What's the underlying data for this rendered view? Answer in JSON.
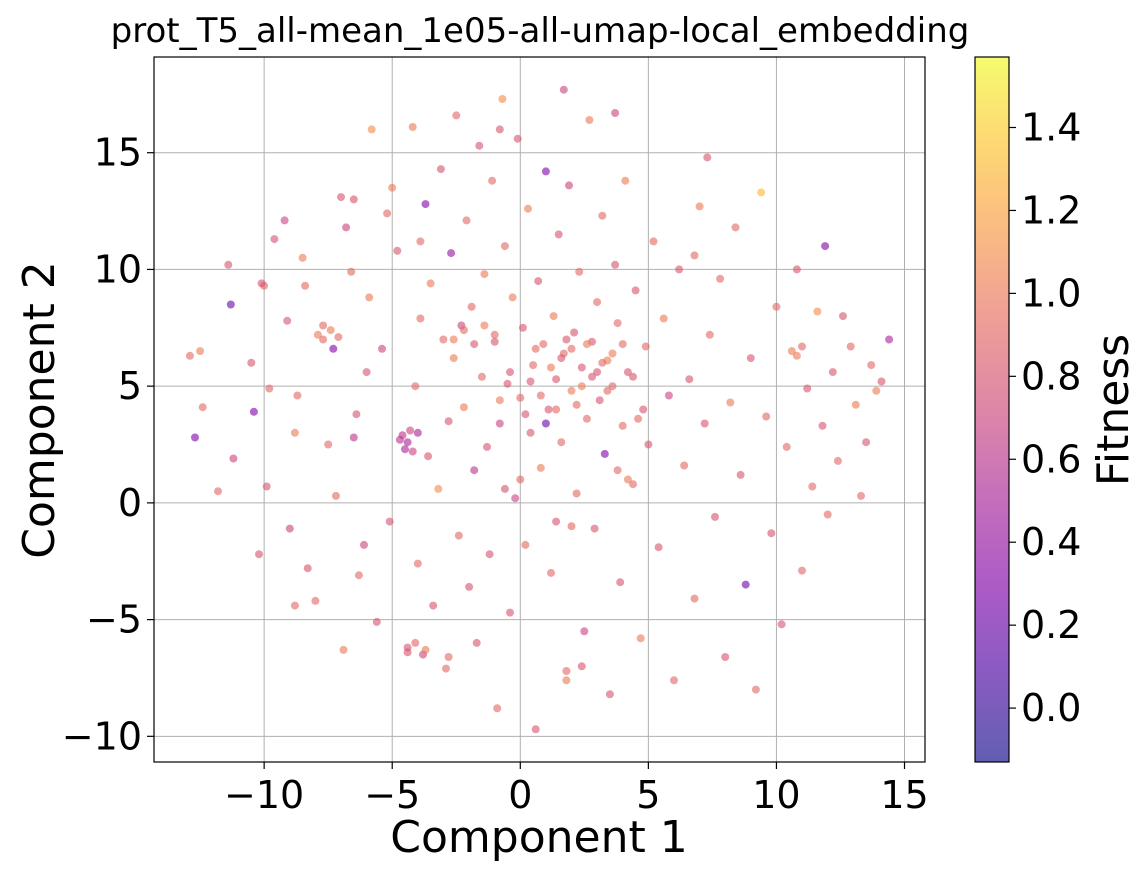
{
  "chart_data": {
    "type": "scatter",
    "title": "prot_T5_all-mean_1e05-all-umap-local_embedding",
    "xlabel": "Component 1",
    "ylabel": "Component 2",
    "xlim": [
      -14.3,
      15.8
    ],
    "ylim": [
      -11.1,
      19.1
    ],
    "xticks": [
      -10,
      -5,
      0,
      5,
      10,
      15
    ],
    "yticks": [
      -10,
      -5,
      0,
      5,
      10,
      15
    ],
    "xtick_labels": [
      "−10",
      "−5",
      "0",
      "5",
      "10",
      "15"
    ],
    "ytick_labels": [
      "−10",
      "−5",
      "0",
      "5",
      "10",
      "15"
    ],
    "grid": true,
    "colormap": "plasma",
    "point_alpha": 0.6,
    "colorbar": {
      "label": "Fitness",
      "range": [
        -0.13,
        1.57
      ],
      "ticks": [
        0.0,
        0.2,
        0.4,
        0.6,
        0.8,
        1.0,
        1.2,
        1.4
      ],
      "tick_labels": [
        "0.0",
        "0.2",
        "0.4",
        "0.6",
        "0.8",
        "1.0",
        "1.2",
        "1.4"
      ]
    },
    "points": [
      [
        -12.7,
        2.8,
        0.3
      ],
      [
        -12.5,
        6.5,
        1.0
      ],
      [
        -12.4,
        4.1,
        0.9
      ],
      [
        -11.8,
        0.5,
        0.9
      ],
      [
        -11.4,
        10.2,
        0.8
      ],
      [
        -11.3,
        8.5,
        0.2
      ],
      [
        -11.2,
        1.9,
        0.7
      ],
      [
        -10.5,
        6.0,
        0.8
      ],
      [
        -10.4,
        3.9,
        0.3
      ],
      [
        -10.2,
        -2.2,
        0.8
      ],
      [
        -10.0,
        9.3,
        0.9
      ],
      [
        -9.9,
        0.7,
        0.8
      ],
      [
        -9.8,
        4.9,
        0.9
      ],
      [
        -9.6,
        11.3,
        0.8
      ],
      [
        -9.2,
        12.1,
        0.7
      ],
      [
        -9.1,
        7.8,
        0.8
      ],
      [
        -9.0,
        -1.1,
        0.7
      ],
      [
        -8.8,
        3.0,
        1.0
      ],
      [
        -8.7,
        4.6,
        0.9
      ],
      [
        -8.5,
        10.5,
        1.0
      ],
      [
        -8.4,
        9.3,
        0.9
      ],
      [
        -8.3,
        -2.8,
        0.8
      ],
      [
        -8.0,
        -4.2,
        0.9
      ],
      [
        -7.9,
        7.2,
        1.0
      ],
      [
        -7.7,
        7.6,
        0.9
      ],
      [
        -7.5,
        2.5,
        0.9
      ],
      [
        -7.3,
        6.6,
        0.3
      ],
      [
        -7.2,
        0.3,
        0.9
      ],
      [
        -7.0,
        13.1,
        0.8
      ],
      [
        -6.9,
        -6.3,
        1.0
      ],
      [
        -6.8,
        11.8,
        0.7
      ],
      [
        -6.6,
        9.9,
        0.9
      ],
      [
        -6.5,
        2.8,
        0.6
      ],
      [
        -6.4,
        3.8,
        0.8
      ],
      [
        -6.3,
        -3.1,
        0.9
      ],
      [
        -6.1,
        -1.8,
        0.7
      ],
      [
        -6.0,
        5.6,
        0.8
      ],
      [
        -5.9,
        8.8,
        1.0
      ],
      [
        -5.8,
        16.0,
        1.1
      ],
      [
        -5.6,
        -5.1,
        0.8
      ],
      [
        -5.4,
        6.6,
        0.7
      ],
      [
        -5.2,
        12.4,
        0.9
      ],
      [
        -5.1,
        -0.8,
        0.8
      ],
      [
        -5.0,
        13.5,
        1.0
      ],
      [
        -4.8,
        10.8,
        0.8
      ],
      [
        -4.7,
        2.7,
        0.6
      ],
      [
        -4.5,
        2.3,
        0.5
      ],
      [
        -4.4,
        -6.2,
        0.8
      ],
      [
        -4.3,
        3.1,
        0.7
      ],
      [
        -4.2,
        16.1,
        1.0
      ],
      [
        -4.1,
        5.0,
        0.9
      ],
      [
        -4.0,
        -2.6,
        0.9
      ],
      [
        -3.9,
        7.9,
        0.9
      ],
      [
        -3.8,
        -6.5,
        0.7
      ],
      [
        -3.7,
        12.8,
        0.3
      ],
      [
        -3.6,
        2.0,
        0.8
      ],
      [
        -3.5,
        9.4,
        1.0
      ],
      [
        -3.4,
        -4.4,
        0.8
      ],
      [
        -3.2,
        0.6,
        1.1
      ],
      [
        -3.1,
        14.3,
        0.8
      ],
      [
        -3.0,
        7.0,
        0.9
      ],
      [
        -2.9,
        -7.1,
        0.9
      ],
      [
        -2.8,
        3.5,
        0.8
      ],
      [
        -2.7,
        10.7,
        0.4
      ],
      [
        -2.6,
        6.2,
        1.0
      ],
      [
        -2.5,
        16.6,
        0.9
      ],
      [
        -2.4,
        -1.4,
        0.9
      ],
      [
        -2.3,
        7.6,
        0.7
      ],
      [
        -2.2,
        4.1,
        1.0
      ],
      [
        -2.1,
        12.1,
        0.9
      ],
      [
        -2.0,
        -3.6,
        0.8
      ],
      [
        -1.9,
        8.4,
        0.9
      ],
      [
        -1.8,
        1.4,
        0.6
      ],
      [
        -1.7,
        -6.0,
        0.8
      ],
      [
        -1.6,
        15.3,
        0.8
      ],
      [
        -1.5,
        5.4,
        0.9
      ],
      [
        -1.4,
        9.8,
        1.0
      ],
      [
        -1.3,
        2.4,
        0.8
      ],
      [
        -1.2,
        -2.2,
        0.8
      ],
      [
        -1.1,
        13.8,
        0.9
      ],
      [
        -1.0,
        6.9,
        0.8
      ],
      [
        -0.9,
        -8.8,
        0.9
      ],
      [
        -0.8,
        3.4,
        0.7
      ],
      [
        -0.7,
        17.3,
        1.1
      ],
      [
        -0.6,
        11.0,
        0.9
      ],
      [
        -0.5,
        5.1,
        0.8
      ],
      [
        -0.4,
        -4.7,
        0.8
      ],
      [
        -0.3,
        8.8,
        1.0
      ],
      [
        -0.2,
        0.2,
        0.7
      ],
      [
        -0.1,
        15.6,
        0.8
      ],
      [
        0.0,
        4.5,
        0.9
      ],
      [
        0.1,
        7.5,
        0.8
      ],
      [
        0.2,
        -1.8,
        0.9
      ],
      [
        0.3,
        12.6,
        1.0
      ],
      [
        0.4,
        3.0,
        0.8
      ],
      [
        0.5,
        5.9,
        0.9
      ],
      [
        0.6,
        -9.7,
        0.8
      ],
      [
        0.7,
        9.5,
        0.8
      ],
      [
        0.8,
        1.5,
        1.0
      ],
      [
        0.9,
        6.8,
        0.9
      ],
      [
        1.0,
        14.2,
        0.3
      ],
      [
        1.1,
        4.0,
        0.8
      ],
      [
        1.2,
        -3.0,
        0.9
      ],
      [
        1.3,
        8.0,
        1.0
      ],
      [
        1.4,
        5.3,
        0.8
      ],
      [
        1.5,
        11.5,
        0.8
      ],
      [
        1.6,
        2.6,
        0.9
      ],
      [
        1.7,
        6.4,
        0.9
      ],
      [
        1.8,
        -7.2,
        0.9
      ],
      [
        1.9,
        13.6,
        0.7
      ],
      [
        2.0,
        4.8,
        1.0
      ],
      [
        2.1,
        7.3,
        0.8
      ],
      [
        2.2,
        0.4,
        0.9
      ],
      [
        2.3,
        9.9,
        0.9
      ],
      [
        2.4,
        5.8,
        0.8
      ],
      [
        2.5,
        -5.5,
        0.7
      ],
      [
        2.6,
        3.6,
        0.9
      ],
      [
        2.7,
        16.4,
        1.0
      ],
      [
        2.8,
        6.9,
        0.8
      ],
      [
        2.9,
        -1.1,
        0.8
      ],
      [
        3.0,
        8.6,
        0.9
      ],
      [
        3.1,
        4.4,
        0.8
      ],
      [
        3.2,
        12.3,
        0.9
      ],
      [
        3.3,
        2.1,
        0.3
      ],
      [
        3.4,
        6.1,
        1.0
      ],
      [
        3.5,
        -8.2,
        0.8
      ],
      [
        3.6,
        5.0,
        0.9
      ],
      [
        3.7,
        10.2,
        0.8
      ],
      [
        3.8,
        7.7,
        0.9
      ],
      [
        3.9,
        -3.4,
        0.8
      ],
      [
        4.0,
        3.3,
        0.9
      ],
      [
        4.1,
        13.8,
        1.0
      ],
      [
        4.2,
        5.6,
        0.8
      ],
      [
        4.4,
        0.8,
        0.9
      ],
      [
        4.5,
        9.1,
        0.8
      ],
      [
        4.7,
        -5.8,
        1.0
      ],
      [
        4.9,
        6.7,
        0.9
      ],
      [
        5.0,
        2.5,
        0.8
      ],
      [
        5.2,
        11.2,
        0.9
      ],
      [
        5.4,
        -1.9,
        0.8
      ],
      [
        5.6,
        7.9,
        1.0
      ],
      [
        5.8,
        4.6,
        0.7
      ],
      [
        6.0,
        -7.6,
        0.9
      ],
      [
        6.2,
        10.0,
        0.8
      ],
      [
        6.4,
        1.6,
        0.9
      ],
      [
        6.6,
        5.3,
        0.8
      ],
      [
        6.8,
        -4.1,
        0.9
      ],
      [
        7.0,
        12.7,
        1.0
      ],
      [
        7.2,
        3.4,
        0.8
      ],
      [
        7.4,
        7.2,
        0.9
      ],
      [
        7.6,
        -0.6,
        0.8
      ],
      [
        7.8,
        9.6,
        0.9
      ],
      [
        8.0,
        -6.6,
        0.8
      ],
      [
        8.2,
        4.3,
        1.0
      ],
      [
        8.4,
        11.8,
        0.9
      ],
      [
        8.6,
        1.2,
        0.8
      ],
      [
        8.8,
        -3.5,
        0.2
      ],
      [
        9.0,
        6.2,
        0.8
      ],
      [
        9.2,
        -8.0,
        0.9
      ],
      [
        9.4,
        13.3,
        1.3
      ],
      [
        9.6,
        3.7,
        0.9
      ],
      [
        9.8,
        -1.3,
        0.8
      ],
      [
        10.0,
        8.4,
        0.9
      ],
      [
        10.2,
        -5.2,
        0.8
      ],
      [
        10.4,
        2.4,
        0.9
      ],
      [
        10.6,
        6.5,
        1.0
      ],
      [
        10.8,
        10.0,
        0.8
      ],
      [
        11.0,
        -2.9,
        0.9
      ],
      [
        11.2,
        4.9,
        0.8
      ],
      [
        11.4,
        0.7,
        0.9
      ],
      [
        11.6,
        8.2,
        1.1
      ],
      [
        11.8,
        3.3,
        0.8
      ],
      [
        12.0,
        -0.5,
        0.9
      ],
      [
        12.2,
        5.6,
        0.8
      ],
      [
        12.4,
        1.8,
        0.9
      ],
      [
        12.6,
        8.0,
        0.8
      ],
      [
        12.9,
        6.7,
        0.9
      ],
      [
        13.1,
        4.2,
        1.0
      ],
      [
        13.3,
        0.3,
        0.9
      ],
      [
        13.5,
        2.6,
        0.8
      ],
      [
        13.7,
        5.9,
        0.9
      ],
      [
        13.9,
        4.8,
        1.0
      ],
      [
        14.1,
        5.2,
        0.8
      ],
      [
        14.4,
        7.0,
        0.5
      ],
      [
        -4.6,
        2.9,
        0.6
      ],
      [
        -4.4,
        2.6,
        0.5
      ],
      [
        -4.2,
        2.2,
        0.7
      ],
      [
        -4.0,
        3.0,
        0.5
      ],
      [
        -2.6,
        7.0,
        1.0
      ],
      [
        -2.2,
        7.4,
        0.9
      ],
      [
        -1.8,
        6.8,
        0.8
      ],
      [
        -1.4,
        7.6,
        1.0
      ],
      [
        -1.0,
        7.2,
        0.9
      ],
      [
        0.4,
        5.2,
        0.8
      ],
      [
        0.8,
        4.6,
        0.9
      ],
      [
        1.2,
        5.8,
        1.0
      ],
      [
        1.6,
        6.2,
        0.8
      ],
      [
        2.0,
        6.6,
        0.9
      ],
      [
        2.4,
        5.0,
        1.0
      ],
      [
        2.8,
        5.4,
        0.8
      ],
      [
        3.2,
        6.0,
        0.9
      ],
      [
        3.6,
        6.4,
        1.0
      ],
      [
        1.0,
        3.4,
        0.2
      ],
      [
        1.4,
        4.0,
        0.9
      ],
      [
        1.8,
        7.0,
        0.8
      ],
      [
        2.2,
        4.2,
        0.9
      ],
      [
        2.6,
        6.8,
        1.0
      ],
      [
        3.0,
        5.6,
        0.8
      ],
      [
        3.4,
        4.8,
        0.9
      ],
      [
        0.2,
        3.8,
        0.8
      ],
      [
        0.6,
        6.6,
        0.9
      ],
      [
        -0.4,
        5.6,
        0.8
      ],
      [
        -0.8,
        4.4,
        1.0
      ],
      [
        4.0,
        6.8,
        0.9
      ],
      [
        4.4,
        5.4,
        0.8
      ],
      [
        -4.4,
        -6.4,
        0.8
      ],
      [
        -4.1,
        -6.0,
        0.9
      ],
      [
        -3.7,
        -6.3,
        1.0
      ],
      [
        -2.8,
        -6.6,
        0.9
      ],
      [
        1.8,
        -7.6,
        1.0
      ],
      [
        2.4,
        -7.0,
        0.8
      ],
      [
        -7.7,
        7.0,
        0.9
      ],
      [
        -7.4,
        7.4,
        1.0
      ],
      [
        -7.1,
        7.1,
        0.9
      ],
      [
        10.8,
        6.3,
        1.0
      ],
      [
        11.0,
        6.7,
        0.9
      ],
      [
        4.6,
        3.6,
        0.9
      ],
      [
        4.8,
        4.0,
        0.8
      ],
      [
        3.8,
        1.4,
        0.9
      ],
      [
        4.2,
        1.0,
        1.0
      ],
      [
        -0.6,
        0.6,
        0.8
      ],
      [
        0.0,
        1.0,
        0.9
      ],
      [
        1.4,
        -0.8,
        0.8
      ],
      [
        2.0,
        -1.0,
        0.9
      ],
      [
        -6.5,
        13.0,
        0.8
      ],
      [
        -3.9,
        11.2,
        0.9
      ],
      [
        6.8,
        10.6,
        0.9
      ],
      [
        7.3,
        14.8,
        0.8
      ],
      [
        -10.1,
        9.4,
        0.8
      ],
      [
        -8.8,
        -4.4,
        0.9
      ],
      [
        11.9,
        11.0,
        0.3
      ],
      [
        -12.9,
        6.3,
        0.9
      ],
      [
        -0.8,
        16.0,
        0.8
      ],
      [
        3.7,
        16.7,
        0.7
      ],
      [
        1.7,
        17.7,
        0.7
      ]
    ]
  }
}
